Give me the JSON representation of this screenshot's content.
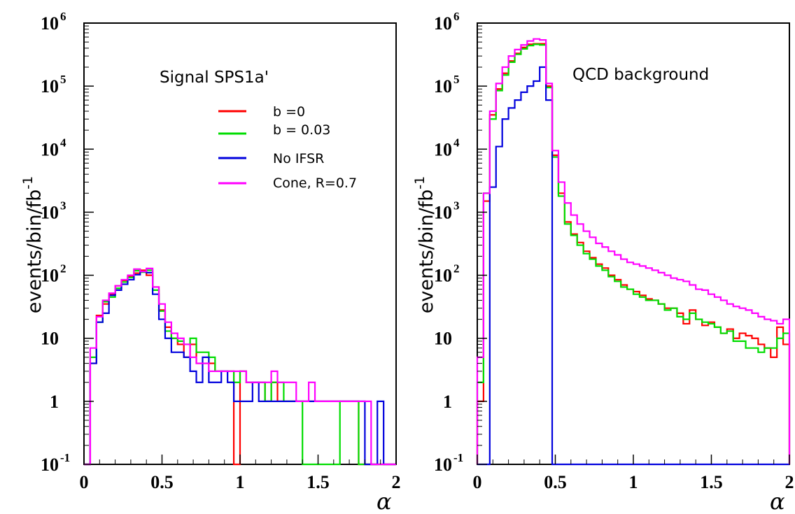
{
  "chart_data": [
    {
      "type": "line",
      "style": "step-histogram",
      "annotation": "Signal SPS1a'",
      "ylabel_parts": {
        "main": "events/bin/fb",
        "sup": "-1"
      },
      "xlabel": "α",
      "xlim": [
        0,
        2
      ],
      "ylim_log10": [
        -1,
        6
      ],
      "log_y": true,
      "x_ticks": [
        "0",
        "0.5",
        "1",
        "1.5",
        "2"
      ],
      "y_ticks": [
        {
          "base": "10",
          "exp": "-1"
        },
        {
          "base": "1",
          "exp": ""
        },
        {
          "base": "10",
          "exp": ""
        },
        {
          "base": "10",
          "exp": "2"
        },
        {
          "base": "10",
          "exp": "3"
        },
        {
          "base": "10",
          "exp": "4"
        },
        {
          "base": "10",
          "exp": "5"
        },
        {
          "base": "10",
          "exp": "6"
        }
      ],
      "legend_position": "top-right",
      "bin_width": 0.04,
      "series": [
        {
          "name": "b =0",
          "color": "#ff0000",
          "values": [
            0.1,
            4,
            23,
            35,
            50,
            68,
            83,
            95,
            108,
            120,
            100,
            65,
            28,
            15,
            10,
            8,
            5,
            8,
            4,
            4,
            4,
            3,
            3,
            3,
            0.1,
            3,
            2,
            2,
            2,
            1,
            2,
            1,
            1,
            1,
            1,
            1,
            1,
            1,
            1,
            1,
            1,
            1,
            1,
            1,
            0.1,
            0.1,
            0.1,
            0.1,
            0.1,
            0.1
          ]
        },
        {
          "name": "b = 0.03",
          "color": "#00dd00",
          "values": [
            0.1,
            5,
            18,
            38,
            45,
            62,
            78,
            92,
            118,
            112,
            120,
            58,
            27,
            13,
            10,
            9,
            8,
            10,
            6,
            6,
            5,
            3,
            3,
            3,
            2,
            3,
            2,
            2,
            2,
            1,
            2,
            2,
            1,
            1,
            1,
            0.1,
            0.1,
            0.1,
            0.1,
            0.1,
            0.1,
            1,
            1,
            1,
            0.1,
            0.1,
            0.1,
            0.1,
            0.1,
            0.1
          ]
        },
        {
          "name": "No IFSR",
          "color": "#0000dd",
          "values": [
            0.1,
            4,
            18,
            25,
            48,
            58,
            72,
            85,
            102,
            115,
            110,
            50,
            20,
            10,
            6,
            6,
            5,
            3,
            2,
            5,
            2,
            2,
            3,
            2,
            1,
            1,
            1,
            2,
            1,
            1,
            1,
            1,
            1,
            1,
            1,
            1,
            1,
            1,
            1,
            1,
            1,
            1,
            1,
            1,
            1,
            0.1,
            0.1,
            1,
            0.1,
            0.1
          ]
        },
        {
          "name": "Cone, R=0.7",
          "color": "#ff00ff",
          "values": [
            0.1,
            7,
            22,
            40,
            52,
            68,
            85,
            100,
            125,
            115,
            128,
            65,
            35,
            18,
            12,
            10,
            8,
            5,
            4,
            4,
            3,
            3,
            3,
            3,
            3,
            3,
            2,
            2,
            2,
            2,
            3,
            2,
            2,
            2,
            1,
            1,
            2,
            1,
            1,
            1,
            1,
            1,
            1,
            1,
            1,
            1,
            0.1,
            0.1,
            0.1,
            0.1
          ]
        }
      ]
    },
    {
      "type": "line",
      "style": "step-histogram",
      "annotation": "QCD background",
      "ylabel_parts": {
        "main": "events/bin/fb",
        "sup": "-1"
      },
      "xlabel": "α",
      "xlim": [
        0,
        2
      ],
      "ylim_log10": [
        -1,
        6
      ],
      "log_y": true,
      "x_ticks": [
        "0",
        "0.5",
        "1",
        "1.5",
        "2"
      ],
      "y_ticks": [
        {
          "base": "10",
          "exp": "-1"
        },
        {
          "base": "1",
          "exp": ""
        },
        {
          "base": "10",
          "exp": ""
        },
        {
          "base": "10",
          "exp": "2"
        },
        {
          "base": "10",
          "exp": "3"
        },
        {
          "base": "10",
          "exp": "4"
        },
        {
          "base": "10",
          "exp": "5"
        },
        {
          "base": "10",
          "exp": "6"
        }
      ],
      "bin_width": 0.04,
      "series": [
        {
          "name": "b =0",
          "color": "#ff0000",
          "values": [
            1,
            1500,
            35000,
            90000,
            160000,
            250000,
            330000,
            410000,
            460000,
            470000,
            470000,
            100000,
            8000,
            2000,
            700,
            450,
            330,
            240,
            190,
            150,
            130,
            100,
            85,
            70,
            60,
            55,
            48,
            42,
            40,
            35,
            30,
            30,
            25,
            17,
            28,
            20,
            16,
            18,
            15,
            12,
            14,
            10,
            12,
            11,
            10,
            8,
            7,
            5,
            15,
            8
          ]
        },
        {
          "name": "b = 0.03",
          "color": "#00dd00",
          "values": [
            2,
            2000,
            30000,
            85000,
            150000,
            240000,
            320000,
            390000,
            440000,
            460000,
            450000,
            95000,
            7500,
            1800,
            650,
            430,
            300,
            220,
            180,
            140,
            120,
            95,
            80,
            65,
            60,
            50,
            45,
            40,
            40,
            35,
            28,
            30,
            22,
            20,
            25,
            20,
            18,
            17,
            15,
            12,
            13,
            9,
            9,
            7,
            7,
            6,
            7,
            7,
            10,
            12
          ]
        },
        {
          "name": "No IFSR",
          "color": "#0000dd",
          "values": [
            0.1,
            0.1,
            2500,
            11000,
            30000,
            45000,
            60000,
            80000,
            100000,
            120000,
            200000,
            60000,
            0.1,
            0.1,
            0.1,
            0.1,
            0.1,
            0.1,
            0.1,
            0.1,
            0.1,
            0.1,
            0.1,
            0.1,
            0.1,
            0.1,
            0.1,
            0.1,
            0.1,
            0.1,
            0.1,
            0.1,
            0.1,
            0.1,
            0.1,
            0.1,
            0.1,
            0.1,
            0.1,
            0.1,
            0.1,
            0.1,
            0.1,
            0.1,
            0.1,
            0.1,
            0.1,
            0.1,
            0.1,
            0.1
          ]
        },
        {
          "name": "Cone, R=0.7",
          "color": "#ff00ff",
          "values": [
            5,
            2000,
            40000,
            110000,
            200000,
            300000,
            380000,
            450000,
            520000,
            560000,
            540000,
            110000,
            9500,
            3000,
            1400,
            900,
            650,
            500,
            400,
            320,
            280,
            240,
            210,
            180,
            160,
            150,
            140,
            130,
            120,
            110,
            100,
            90,
            85,
            80,
            70,
            60,
            58,
            50,
            45,
            40,
            35,
            32,
            30,
            28,
            25,
            22,
            20,
            19,
            17,
            20
          ]
        }
      ]
    }
  ]
}
